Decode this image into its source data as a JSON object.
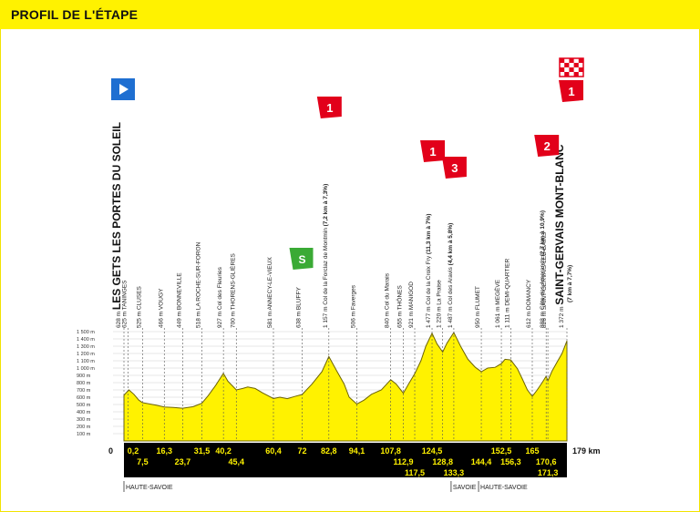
{
  "header": {
    "title": "PROFIL DE L'ÉTAPE"
  },
  "colors": {
    "band": "#fff200",
    "profile": "#fff200",
    "axis_bar": "#000000",
    "climb_red": "#e2001a",
    "sprint_green": "#3aaa35",
    "start_blue": "#1f6fd1"
  },
  "icons": {
    "start": "blue-arrow-flag-icon",
    "finish": "checkered-flag-icon",
    "sprint": "green-sprint-icon",
    "climb": "red-climb-category-icon"
  },
  "chart_data": {
    "type": "area",
    "title": "",
    "xlabel": "",
    "ylabel": "",
    "xlim": [
      0,
      179
    ],
    "ylim": [
      0,
      1500
    ],
    "y_ticks": [
      "1 500 m",
      "1 400 m",
      "1 300 m",
      "1 200 m",
      "1 100 m",
      "1 000 m",
      "900 m",
      "800 m",
      "700 m",
      "600 m",
      "500 m",
      "400 m",
      "300 m",
      "200 m",
      "100 m"
    ],
    "km_start_label": "0",
    "km_end_label": "179 km",
    "km_top_labels": [
      "0,2",
      "16,3",
      "31,5",
      "40,2",
      "60,4",
      "72",
      "82,8",
      "94,1",
      "107,8",
      "124,5",
      "152,5",
      "165"
    ],
    "km_row2_labels": [
      "7,5",
      "23,7",
      "45,4",
      "112,9",
      "128,8",
      "144,4",
      "156,3",
      "170,6"
    ],
    "km_row3_labels": [
      "117,5",
      "133,3",
      "171,3"
    ],
    "profile": [
      {
        "x": 0,
        "y": 628
      },
      {
        "x": 2,
        "y": 700
      },
      {
        "x": 4,
        "y": 640
      },
      {
        "x": 6,
        "y": 560
      },
      {
        "x": 7.5,
        "y": 525
      },
      {
        "x": 10,
        "y": 510
      },
      {
        "x": 13,
        "y": 490
      },
      {
        "x": 16.3,
        "y": 466
      },
      {
        "x": 20,
        "y": 460
      },
      {
        "x": 23.7,
        "y": 449
      },
      {
        "x": 28,
        "y": 470
      },
      {
        "x": 31.5,
        "y": 518
      },
      {
        "x": 34,
        "y": 620
      },
      {
        "x": 37,
        "y": 760
      },
      {
        "x": 40.2,
        "y": 927
      },
      {
        "x": 42,
        "y": 820
      },
      {
        "x": 45.4,
        "y": 700
      },
      {
        "x": 48,
        "y": 720
      },
      {
        "x": 50,
        "y": 740
      },
      {
        "x": 53,
        "y": 720
      },
      {
        "x": 56,
        "y": 660
      },
      {
        "x": 60.4,
        "y": 581
      },
      {
        "x": 63,
        "y": 600
      },
      {
        "x": 66,
        "y": 580
      },
      {
        "x": 69,
        "y": 610
      },
      {
        "x": 72,
        "y": 638
      },
      {
        "x": 76,
        "y": 780
      },
      {
        "x": 80,
        "y": 950
      },
      {
        "x": 82.8,
        "y": 1157
      },
      {
        "x": 86,
        "y": 960
      },
      {
        "x": 89,
        "y": 780
      },
      {
        "x": 91,
        "y": 600
      },
      {
        "x": 94.1,
        "y": 506
      },
      {
        "x": 97,
        "y": 560
      },
      {
        "x": 100,
        "y": 640
      },
      {
        "x": 104,
        "y": 700
      },
      {
        "x": 107.8,
        "y": 840
      },
      {
        "x": 110,
        "y": 780
      },
      {
        "x": 112.9,
        "y": 655
      },
      {
        "x": 115,
        "y": 780
      },
      {
        "x": 117.5,
        "y": 921
      },
      {
        "x": 120,
        "y": 1100
      },
      {
        "x": 122,
        "y": 1300
      },
      {
        "x": 124.5,
        "y": 1477
      },
      {
        "x": 126.5,
        "y": 1330
      },
      {
        "x": 128.8,
        "y": 1220
      },
      {
        "x": 130.5,
        "y": 1340
      },
      {
        "x": 133.3,
        "y": 1487
      },
      {
        "x": 136,
        "y": 1300
      },
      {
        "x": 139,
        "y": 1120
      },
      {
        "x": 142,
        "y": 1010
      },
      {
        "x": 144.4,
        "y": 950
      },
      {
        "x": 147,
        "y": 1000
      },
      {
        "x": 150,
        "y": 1010
      },
      {
        "x": 152.5,
        "y": 1061
      },
      {
        "x": 154,
        "y": 1120
      },
      {
        "x": 156.3,
        "y": 1111
      },
      {
        "x": 159,
        "y": 990
      },
      {
        "x": 161,
        "y": 850
      },
      {
        "x": 163,
        "y": 700
      },
      {
        "x": 165,
        "y": 612
      },
      {
        "x": 167,
        "y": 700
      },
      {
        "x": 169,
        "y": 800
      },
      {
        "x": 170.6,
        "y": 888
      },
      {
        "x": 171.3,
        "y": 826
      },
      {
        "x": 173,
        "y": 960
      },
      {
        "x": 175,
        "y": 1080
      },
      {
        "x": 177,
        "y": 1200
      },
      {
        "x": 179,
        "y": 1372
      }
    ],
    "waypoints": [
      {
        "km": 0,
        "text": "628 m",
        "name": "LES GETS LES PORTES DU SOLEIL",
        "major": true
      },
      {
        "km": 0.2,
        "text": "625 m TANINGES"
      },
      {
        "km": 7.5,
        "text": "525 m CLUSES"
      },
      {
        "km": 16.3,
        "text": "466 m VOUGY"
      },
      {
        "km": 23.7,
        "text": "449 m BONNEVILLE"
      },
      {
        "km": 31.5,
        "text": "518 m LA ROCHE-SUR-FORON"
      },
      {
        "km": 40.2,
        "text": "927 m Col des Fleuries"
      },
      {
        "km": 45.4,
        "text": "700 m THORENS-GLIÈRES"
      },
      {
        "km": 60.4,
        "text": "581 m ANNECY-LE-VIEUX"
      },
      {
        "km": 72,
        "text": "638 m BLUFFY"
      },
      {
        "km": 82.8,
        "text": "1 157 m Col de la Forclaz de Montmin",
        "detail": "(7,2 km à 7,3%)"
      },
      {
        "km": 94.1,
        "text": "506 m Faverges"
      },
      {
        "km": 107.8,
        "text": "840 m Col du Marais"
      },
      {
        "km": 112.9,
        "text": "655 m THÔNES"
      },
      {
        "km": 117.5,
        "text": "921 m MANIGOD"
      },
      {
        "km": 124.5,
        "text": "1 477 m Col de la Croix Fry",
        "detail": "(11,3 km à 7%)"
      },
      {
        "km": 128.8,
        "text": "1 220 m La Praise"
      },
      {
        "km": 133.3,
        "text": "1 487 m Col des Aravis",
        "detail": "(4,4 km à 5,8%)"
      },
      {
        "km": 144.4,
        "text": "950 m FLUMET"
      },
      {
        "km": 152.5,
        "text": "1 061 m MEGÈVE"
      },
      {
        "km": 156.3,
        "text": "1 111 m DEMI-QUARTIER"
      },
      {
        "km": 165,
        "text": "612 m DOMANCY"
      },
      {
        "km": 170.6,
        "text": "888 m Côte des Amerands",
        "detail": "(2,7 km à 10,9%)"
      },
      {
        "km": 171.3,
        "text": "826 m SAINT-GERVAIS-LES-BAINS"
      },
      {
        "km": 179,
        "text": "1 372 m",
        "name": "SAINT-GERVAIS MONT-BLANC",
        "detail": "(7 km à 7,7%)",
        "major": true
      }
    ],
    "markers": [
      {
        "km": 0,
        "type": "start"
      },
      {
        "km": 72,
        "type": "sprint"
      },
      {
        "km": 82.8,
        "type": "climb",
        "category": "1"
      },
      {
        "km": 124.5,
        "type": "climb",
        "category": "1"
      },
      {
        "km": 133.3,
        "type": "climb",
        "category": "3"
      },
      {
        "km": 170.6,
        "type": "climb",
        "category": "2"
      },
      {
        "km": 179,
        "type": "climb",
        "category": "1"
      },
      {
        "km": 179,
        "type": "finish"
      }
    ],
    "regions": [
      {
        "km": 0,
        "label": "HAUTE-SAVOIE"
      },
      {
        "km": 133.3,
        "label": "SAVOIE"
      },
      {
        "km": 144.4,
        "label": "HAUTE-SAVOIE"
      }
    ]
  }
}
